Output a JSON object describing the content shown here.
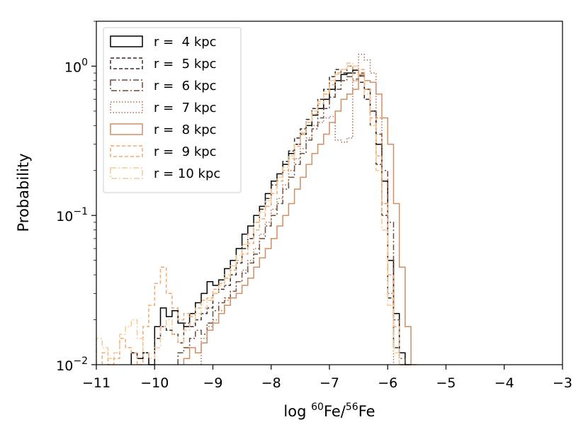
{
  "chart_data": {
    "type": "step-histogram",
    "title": "",
    "xlabel": {
      "prefix": "log ",
      "sup1": "60",
      "mid": "Fe/",
      "sup2": "56",
      "suffix": "Fe"
    },
    "ylabel": "Probability",
    "xlim": [
      -11,
      -3
    ],
    "ylim": [
      0.01,
      2.0
    ],
    "yscale": "log",
    "grid": false,
    "legend_position": "upper-left",
    "x_ticks": [
      {
        "value": -11,
        "label": "−11"
      },
      {
        "value": -10,
        "label": "−10"
      },
      {
        "value": -9,
        "label": "−9"
      },
      {
        "value": -8,
        "label": "−8"
      },
      {
        "value": -7,
        "label": "−7"
      },
      {
        "value": -6,
        "label": "−6"
      },
      {
        "value": -5,
        "label": "−5"
      },
      {
        "value": -4,
        "label": "−4"
      },
      {
        "value": -3,
        "label": "−3"
      }
    ],
    "y_ticks": [
      {
        "value": 0.01,
        "base": "10",
        "exp": "−2"
      },
      {
        "value": 0.1,
        "base": "10",
        "exp": "−1"
      },
      {
        "value": 1,
        "base": "10",
        "exp": "0"
      }
    ],
    "series": [
      {
        "name": "r =  4 kpc",
        "color": "#000000",
        "dash": "",
        "bins": [
          -10.4,
          -10.3,
          -10.2,
          -10.1,
          -10.0,
          -9.9,
          -9.8,
          -9.7,
          -9.6,
          -9.5,
          -9.4,
          -9.3,
          -9.2,
          -9.1,
          -9.0,
          -8.9,
          -8.8,
          -8.7,
          -8.6,
          -8.5,
          -8.4,
          -8.3,
          -8.2,
          -8.1,
          -8.0,
          -7.9,
          -7.8,
          -7.7,
          -7.6,
          -7.5,
          -7.4,
          -7.3,
          -7.2,
          -7.1,
          -7.0,
          -6.9,
          -6.8,
          -6.7,
          -6.6,
          -6.5,
          -6.4,
          -6.3,
          -6.2,
          -6.1,
          -6.0,
          -5.9,
          -5.8,
          -5.7
        ],
        "values": [
          0.012,
          0.011,
          0.012,
          0.01,
          0.018,
          0.024,
          0.021,
          0.023,
          0.019,
          0.018,
          0.022,
          0.026,
          0.03,
          0.036,
          0.034,
          0.037,
          0.044,
          0.05,
          0.06,
          0.075,
          0.085,
          0.1,
          0.115,
          0.14,
          0.17,
          0.19,
          0.22,
          0.26,
          0.3,
          0.35,
          0.4,
          0.47,
          0.52,
          0.6,
          0.7,
          0.8,
          0.88,
          0.9,
          0.94,
          0.86,
          0.7,
          0.5,
          0.3,
          0.17,
          0.05,
          0.022,
          0.012,
          0.01
        ]
      },
      {
        "name": "r =  5 kpc",
        "color": "#3a2a21",
        "dash": "5,3",
        "bins": [
          -10.0,
          -9.9,
          -9.8,
          -9.7,
          -9.6,
          -9.5,
          -9.4,
          -9.3,
          -9.2,
          -9.1,
          -9.0,
          -8.9,
          -8.8,
          -8.7,
          -8.6,
          -8.5,
          -8.4,
          -8.3,
          -8.2,
          -8.1,
          -8.0,
          -7.9,
          -7.8,
          -7.7,
          -7.6,
          -7.5,
          -7.4,
          -7.3,
          -7.2,
          -7.1,
          -7.0,
          -6.9,
          -6.8,
          -6.7,
          -6.6,
          -6.5,
          -6.4,
          -6.3,
          -6.2,
          -6.1,
          -6.0,
          -5.9,
          -5.8
        ],
        "values": [
          0.015,
          0.018,
          0.017,
          0.016,
          0.014,
          0.019,
          0.018,
          0.02,
          0.022,
          0.024,
          0.03,
          0.032,
          0.034,
          0.04,
          0.048,
          0.06,
          0.07,
          0.09,
          0.11,
          0.13,
          0.16,
          0.19,
          0.23,
          0.27,
          0.33,
          0.38,
          0.44,
          0.52,
          0.6,
          0.7,
          0.85,
          0.95,
          0.9,
          1.0,
          0.9,
          0.78,
          0.6,
          0.4,
          0.22,
          0.1,
          0.028,
          0.013,
          0.01
        ]
      },
      {
        "name": "r =  6 kpc",
        "color": "#6b4a36",
        "dash": "8,3,2,3",
        "bins": [
          -9.6,
          -9.5,
          -9.4,
          -9.3,
          -9.2,
          -9.1,
          -9.0,
          -8.9,
          -8.8,
          -8.7,
          -8.6,
          -8.5,
          -8.4,
          -8.3,
          -8.2,
          -8.1,
          -8.0,
          -7.9,
          -7.8,
          -7.7,
          -7.6,
          -7.5,
          -7.4,
          -7.3,
          -7.2,
          -7.1,
          -7.0,
          -6.9,
          -6.8,
          -6.7,
          -6.6,
          -6.5,
          -6.4,
          -6.3,
          -6.2,
          -6.1,
          -6.0,
          -5.9,
          -5.8
        ],
        "values": [
          0.012,
          0.013,
          0.015,
          0.017,
          0.016,
          0.019,
          0.023,
          0.026,
          0.028,
          0.031,
          0.036,
          0.041,
          0.048,
          0.055,
          0.07,
          0.085,
          0.1,
          0.12,
          0.15,
          0.18,
          0.22,
          0.26,
          0.32,
          0.38,
          0.45,
          0.52,
          0.62,
          0.7,
          0.8,
          0.85,
          0.82,
          0.9,
          0.7,
          0.5,
          0.35,
          0.2,
          0.09,
          0.02,
          0.011
        ]
      },
      {
        "name": "r =  7 kpc",
        "color": "#a96e4f",
        "dash": "1.5,2.5",
        "bins": [
          -9.2,
          -9.1,
          -9.0,
          -8.9,
          -8.8,
          -8.7,
          -8.6,
          -8.5,
          -8.4,
          -8.3,
          -8.2,
          -8.1,
          -8.0,
          -7.9,
          -7.8,
          -7.7,
          -7.6,
          -7.5,
          -7.4,
          -7.3,
          -7.2,
          -7.1,
          -7.0,
          -6.9,
          -6.8,
          -6.7,
          -6.6,
          -6.5,
          -6.4,
          -6.3,
          -6.2,
          -6.1,
          -6.0
        ],
        "values": [
          0.015,
          0.018,
          0.02,
          0.023,
          0.027,
          0.031,
          0.036,
          0.043,
          0.05,
          0.06,
          0.075,
          0.09,
          0.11,
          0.13,
          0.16,
          0.2,
          0.24,
          0.28,
          0.33,
          0.4,
          0.42,
          0.45,
          0.46,
          0.32,
          0.31,
          0.33,
          0.8,
          1.2,
          1.1,
          0.9,
          0.45,
          0.12,
          0.03
        ]
      },
      {
        "name": "r =  8 kpc",
        "color": "#d08e63",
        "dash": "",
        "bins": [
          -9.5,
          -9.4,
          -9.3,
          -9.2,
          -9.1,
          -9.0,
          -8.9,
          -8.8,
          -8.7,
          -8.6,
          -8.5,
          -8.4,
          -8.3,
          -8.2,
          -8.1,
          -8.0,
          -7.9,
          -7.8,
          -7.7,
          -7.6,
          -7.5,
          -7.4,
          -7.3,
          -7.2,
          -7.1,
          -7.0,
          -6.9,
          -6.8,
          -6.7,
          -6.6,
          -6.5,
          -6.4,
          -6.3,
          -6.2,
          -6.1,
          -6.0,
          -5.9,
          -5.8,
          -5.7,
          -5.6
        ],
        "values": [
          0.011,
          0.013,
          0.012,
          0.014,
          0.017,
          0.019,
          0.022,
          0.025,
          0.028,
          0.03,
          0.034,
          0.038,
          0.045,
          0.052,
          0.06,
          0.07,
          0.085,
          0.1,
          0.12,
          0.15,
          0.18,
          0.22,
          0.26,
          0.3,
          0.35,
          0.42,
          0.5,
          0.6,
          0.65,
          0.7,
          0.88,
          0.8,
          0.78,
          0.65,
          0.45,
          0.3,
          0.12,
          0.045,
          0.018,
          0.01
        ]
      },
      {
        "name": "r =  9 kpc",
        "color": "#f2a870",
        "dash": "5,3",
        "bins": [
          -10.9,
          -10.8,
          -10.7,
          -10.6,
          -10.5,
          -10.4,
          -10.3,
          -10.2,
          -10.1,
          -10.0,
          -9.9,
          -9.8,
          -9.7,
          -9.6,
          -9.5,
          -9.4,
          -9.3,
          -9.2,
          -9.1,
          -9.0,
          -8.9,
          -8.8,
          -8.7,
          -8.6,
          -8.5,
          -8.4,
          -8.3,
          -8.2,
          -8.1,
          -8.0,
          -7.9,
          -7.8,
          -7.7,
          -7.6,
          -7.5,
          -7.4,
          -7.3,
          -7.2,
          -7.1,
          -7.0,
          -6.9,
          -6.8,
          -6.7,
          -6.6,
          -6.5,
          -6.4,
          -6.3,
          -6.2,
          -6.1,
          -6.0,
          -5.9
        ],
        "values": [
          0.012,
          0.01,
          0.011,
          0.015,
          0.013,
          0.012,
          0.01,
          0.018,
          0.025,
          0.035,
          0.045,
          0.03,
          0.024,
          0.02,
          0.022,
          0.021,
          0.024,
          0.027,
          0.028,
          0.032,
          0.035,
          0.038,
          0.043,
          0.05,
          0.055,
          0.065,
          0.08,
          0.095,
          0.115,
          0.14,
          0.17,
          0.2,
          0.24,
          0.29,
          0.35,
          0.42,
          0.48,
          0.56,
          0.65,
          0.75,
          0.9,
          0.95,
          1.0,
          0.8,
          0.95,
          0.7,
          0.45,
          0.25,
          0.12,
          0.04,
          0.018
        ]
      },
      {
        "name": "r = 10 kpc",
        "color": "#f7c993",
        "dash": "8,3,2,3",
        "bins": [
          -11.0,
          -10.9,
          -10.8,
          -10.7,
          -10.6,
          -10.5,
          -10.4,
          -10.3,
          -10.2,
          -10.1,
          -10.0,
          -9.9,
          -9.8,
          -9.7,
          -9.6,
          -9.5,
          -9.4,
          -9.3,
          -9.2,
          -9.1,
          -9.0,
          -8.9,
          -8.8,
          -8.7,
          -8.6,
          -8.5,
          -8.4,
          -8.3,
          -8.2,
          -8.1,
          -8.0,
          -7.9,
          -7.8,
          -7.7,
          -7.6,
          -7.5,
          -7.4,
          -7.3,
          -7.2,
          -7.1,
          -7.0,
          -6.9,
          -6.8,
          -6.7,
          -6.6,
          -6.5,
          -6.4,
          -6.3,
          -6.2,
          -6.1,
          -6.0,
          -5.9,
          -5.8
        ],
        "values": [
          0.015,
          0.013,
          0.011,
          0.012,
          0.016,
          0.018,
          0.02,
          0.015,
          0.012,
          0.011,
          0.013,
          0.018,
          0.02,
          0.016,
          0.014,
          0.017,
          0.019,
          0.022,
          0.024,
          0.027,
          0.03,
          0.034,
          0.04,
          0.046,
          0.054,
          0.064,
          0.075,
          0.09,
          0.105,
          0.125,
          0.15,
          0.18,
          0.21,
          0.25,
          0.3,
          0.36,
          0.42,
          0.5,
          0.58,
          0.68,
          0.8,
          0.88,
          0.95,
          1.05,
          1.0,
          0.85,
          0.65,
          0.4,
          0.2,
          0.08,
          0.025,
          0.012,
          0.01
        ]
      }
    ]
  }
}
